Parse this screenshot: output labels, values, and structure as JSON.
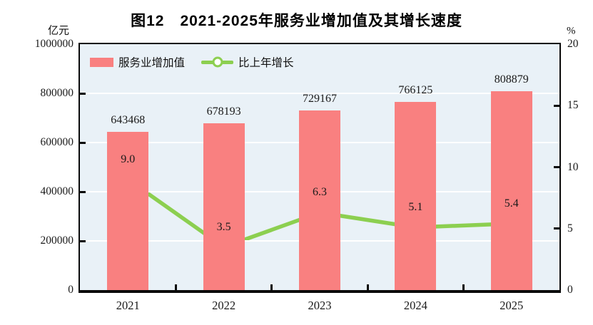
{
  "title": "图12　2021-2025年服务业增加值及其增长速度",
  "colors": {
    "bar": "#f98080",
    "line": "#8ccf50",
    "marker_fill": "#ffffff",
    "plot_background": "#e9f1f7",
    "gridline": "#ffffff",
    "axis": "#0a0a0a"
  },
  "legend": {
    "bar_label": "服务业增加值",
    "line_label": "比上年增长"
  },
  "chart_data": {
    "type": "bar",
    "subtype": "bar+line combo, dual axis",
    "title": "图12　2021-2025年服务业增加值及其增长速度",
    "categories": [
      "2021",
      "2022",
      "2023",
      "2024",
      "2025"
    ],
    "series": [
      {
        "name": "服务业增加值",
        "type": "bar",
        "axis": "left",
        "values": [
          643468,
          678193,
          729167,
          766125,
          808879
        ],
        "labels": [
          "643468",
          "678193",
          "729167",
          "766125",
          "808879"
        ],
        "color": "#f98080"
      },
      {
        "name": "比上年增长",
        "type": "line",
        "axis": "right",
        "values": [
          9.0,
          3.5,
          6.3,
          5.1,
          5.4
        ],
        "labels": [
          "9.0",
          "3.5",
          "6.3",
          "5.1",
          "5.4"
        ],
        "color": "#8ccf50"
      }
    ],
    "left_ylabel": "亿元",
    "right_ylabel": "%",
    "left_ylim": [
      0,
      1000000
    ],
    "right_ylim": [
      0,
      20
    ],
    "left_ticks": [
      "0",
      "200000",
      "400000",
      "600000",
      "800000",
      "1000000"
    ],
    "right_ticks": [
      "0",
      "5",
      "10",
      "15",
      "20"
    ],
    "grid": true,
    "legend_position": "top-left-inside"
  }
}
